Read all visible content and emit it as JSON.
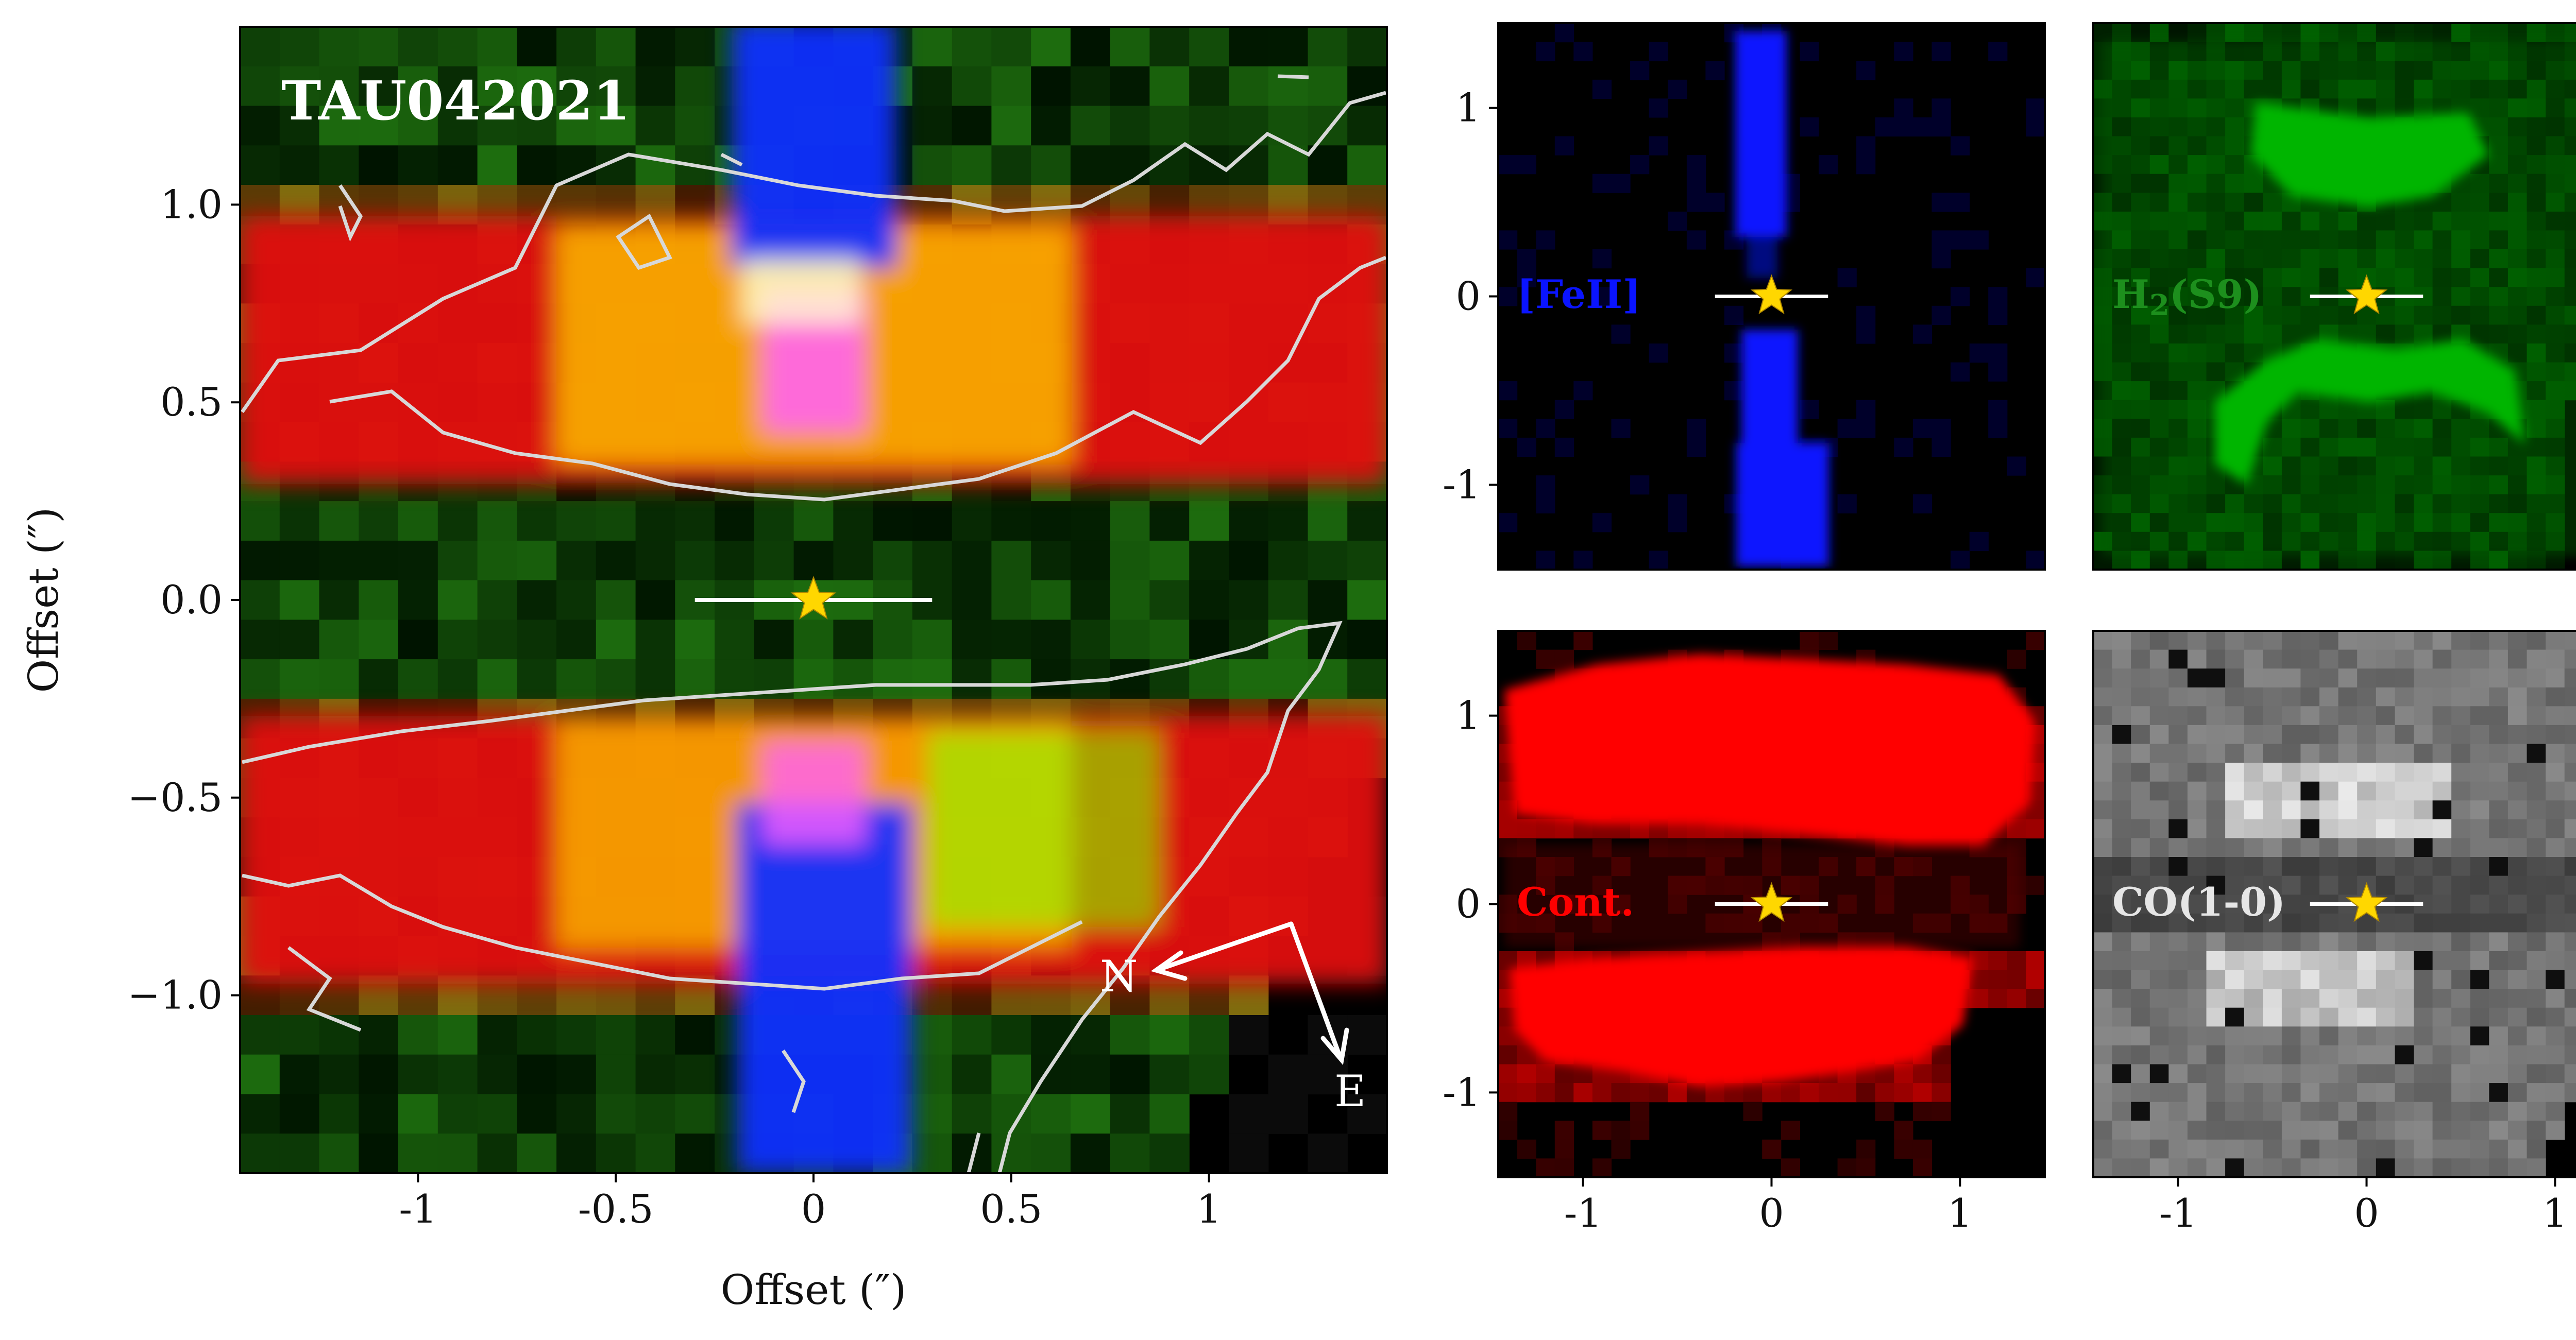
{
  "figure": {
    "title": "TAU042021",
    "colors": {
      "feii": "#0a14ff",
      "h2": "#00ff00",
      "cont": "#ff0000",
      "star": "#ffd700",
      "contour": "#d8d8d8",
      "background": "#000000"
    },
    "compass": {
      "north": "N",
      "east": "E"
    }
  },
  "chart_data": [
    {
      "type": "heatmap",
      "panel": "main",
      "title": "TAU042021",
      "xlabel": "Offset (″)",
      "ylabel": "Offset (″)",
      "xlim": [
        -1.45,
        1.45
      ],
      "ylim": [
        -1.45,
        1.45
      ],
      "xticks": [
        -1,
        -0.5,
        0,
        0.5,
        1
      ],
      "xtick_labels": [
        "-1",
        "-0.5",
        "0",
        "0.5",
        "1"
      ],
      "yticks": [
        1.0,
        0.5,
        0.0,
        -0.5,
        -1.0
      ],
      "ytick_labels": [
        "1.0",
        "0.5",
        "0.0",
        "−0.5",
        "−1.0"
      ],
      "star": {
        "x": 0,
        "y": 0
      },
      "bar": {
        "x": [
          -0.3,
          0.3
        ],
        "y": 0
      },
      "composite": "RGB: red = continuum, green = H2 (S9), blue = [FeII]; contours = CO(1-0)"
    },
    {
      "type": "heatmap",
      "panel": "feii",
      "label": "[FeII]",
      "xlim": [
        -1.45,
        1.45
      ],
      "ylim": [
        -1.45,
        1.45
      ],
      "yticks": [
        1,
        0,
        -1
      ],
      "ytick_labels": [
        "1",
        "0",
        "-1"
      ],
      "star": {
        "x": 0,
        "y": 0
      },
      "bar": {
        "x": [
          -0.3,
          0.3
        ],
        "y": 0
      }
    },
    {
      "type": "heatmap",
      "panel": "h2",
      "label": "H2(S9)",
      "label_parts": [
        "H",
        "2",
        "(S9)"
      ],
      "xlim": [
        -1.45,
        1.45
      ],
      "ylim": [
        -1.45,
        1.45
      ],
      "star": {
        "x": 0,
        "y": 0
      },
      "bar": {
        "x": [
          -0.3,
          0.3
        ],
        "y": 0
      }
    },
    {
      "type": "heatmap",
      "panel": "cont",
      "label": "Cont.",
      "xlim": [
        -1.45,
        1.45
      ],
      "ylim": [
        -1.45,
        1.45
      ],
      "xticks": [
        -1,
        0,
        1
      ],
      "xtick_labels": [
        "-1",
        "0",
        "1"
      ],
      "yticks": [
        1,
        0,
        -1
      ],
      "ytick_labels": [
        "1",
        "0",
        "-1"
      ],
      "star": {
        "x": 0,
        "y": 0
      },
      "bar": {
        "x": [
          -0.3,
          0.3
        ],
        "y": 0
      }
    },
    {
      "type": "heatmap",
      "panel": "co",
      "label": "CO(1-0)",
      "xlim": [
        -1.45,
        1.45
      ],
      "ylim": [
        -1.45,
        1.45
      ],
      "xticks": [
        -1,
        0,
        1
      ],
      "xtick_labels": [
        "-1",
        "0",
        "1"
      ],
      "star": {
        "x": 0,
        "y": 0
      },
      "bar": {
        "x": [
          -0.3,
          0.3
        ],
        "y": 0
      }
    }
  ]
}
